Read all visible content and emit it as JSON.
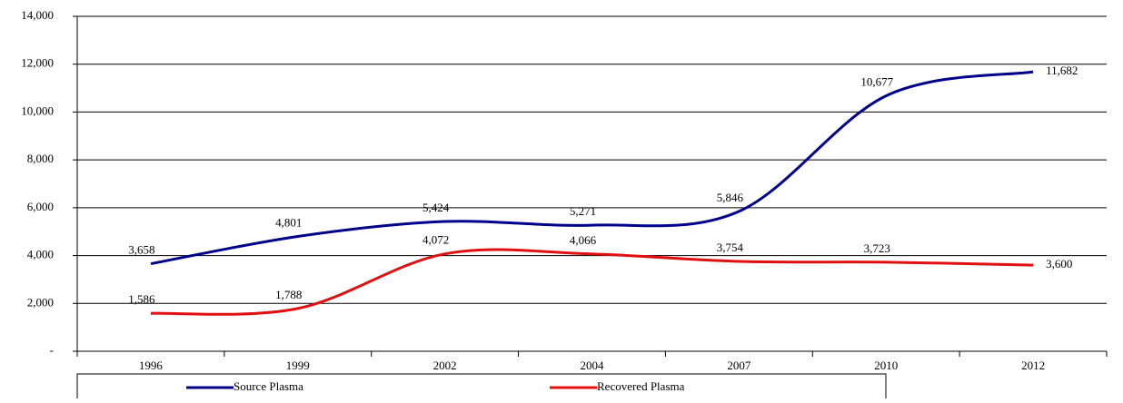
{
  "chart_data": {
    "type": "line",
    "categories": [
      "1996",
      "1999",
      "2002",
      "2004",
      "2007",
      "2010",
      "2012"
    ],
    "series": [
      {
        "name": "Source Plasma",
        "color": "#00008b",
        "values": [
          3658,
          4801,
          5424,
          5271,
          5846,
          10677,
          11682
        ],
        "value_labels": [
          "3,658",
          "4,801",
          "5,424",
          "5,271",
          "5,846",
          "10,677",
          "11,682"
        ]
      },
      {
        "name": "Recovered Plasma",
        "color": "#e01010",
        "values": [
          1586,
          1788,
          4072,
          4066,
          3754,
          3723,
          3600
        ],
        "value_labels": [
          "1,586",
          "1,788",
          "4,072",
          "4,066",
          "3,754",
          "3,723",
          "3,600"
        ]
      }
    ],
    "ylim": [
      0,
      14000
    ],
    "yticks": [
      {
        "value": 0,
        "label": "-"
      },
      {
        "value": 2000,
        "label": "2,000"
      },
      {
        "value": 4000,
        "label": "4,000"
      },
      {
        "value": 6000,
        "label": "6,000"
      },
      {
        "value": 8000,
        "label": "8,000"
      },
      {
        "value": 10000,
        "label": "10,000"
      },
      {
        "value": 12000,
        "label": "12,000"
      },
      {
        "value": 14000,
        "label": "14,000"
      }
    ],
    "grid": true,
    "legend": "bottom"
  }
}
